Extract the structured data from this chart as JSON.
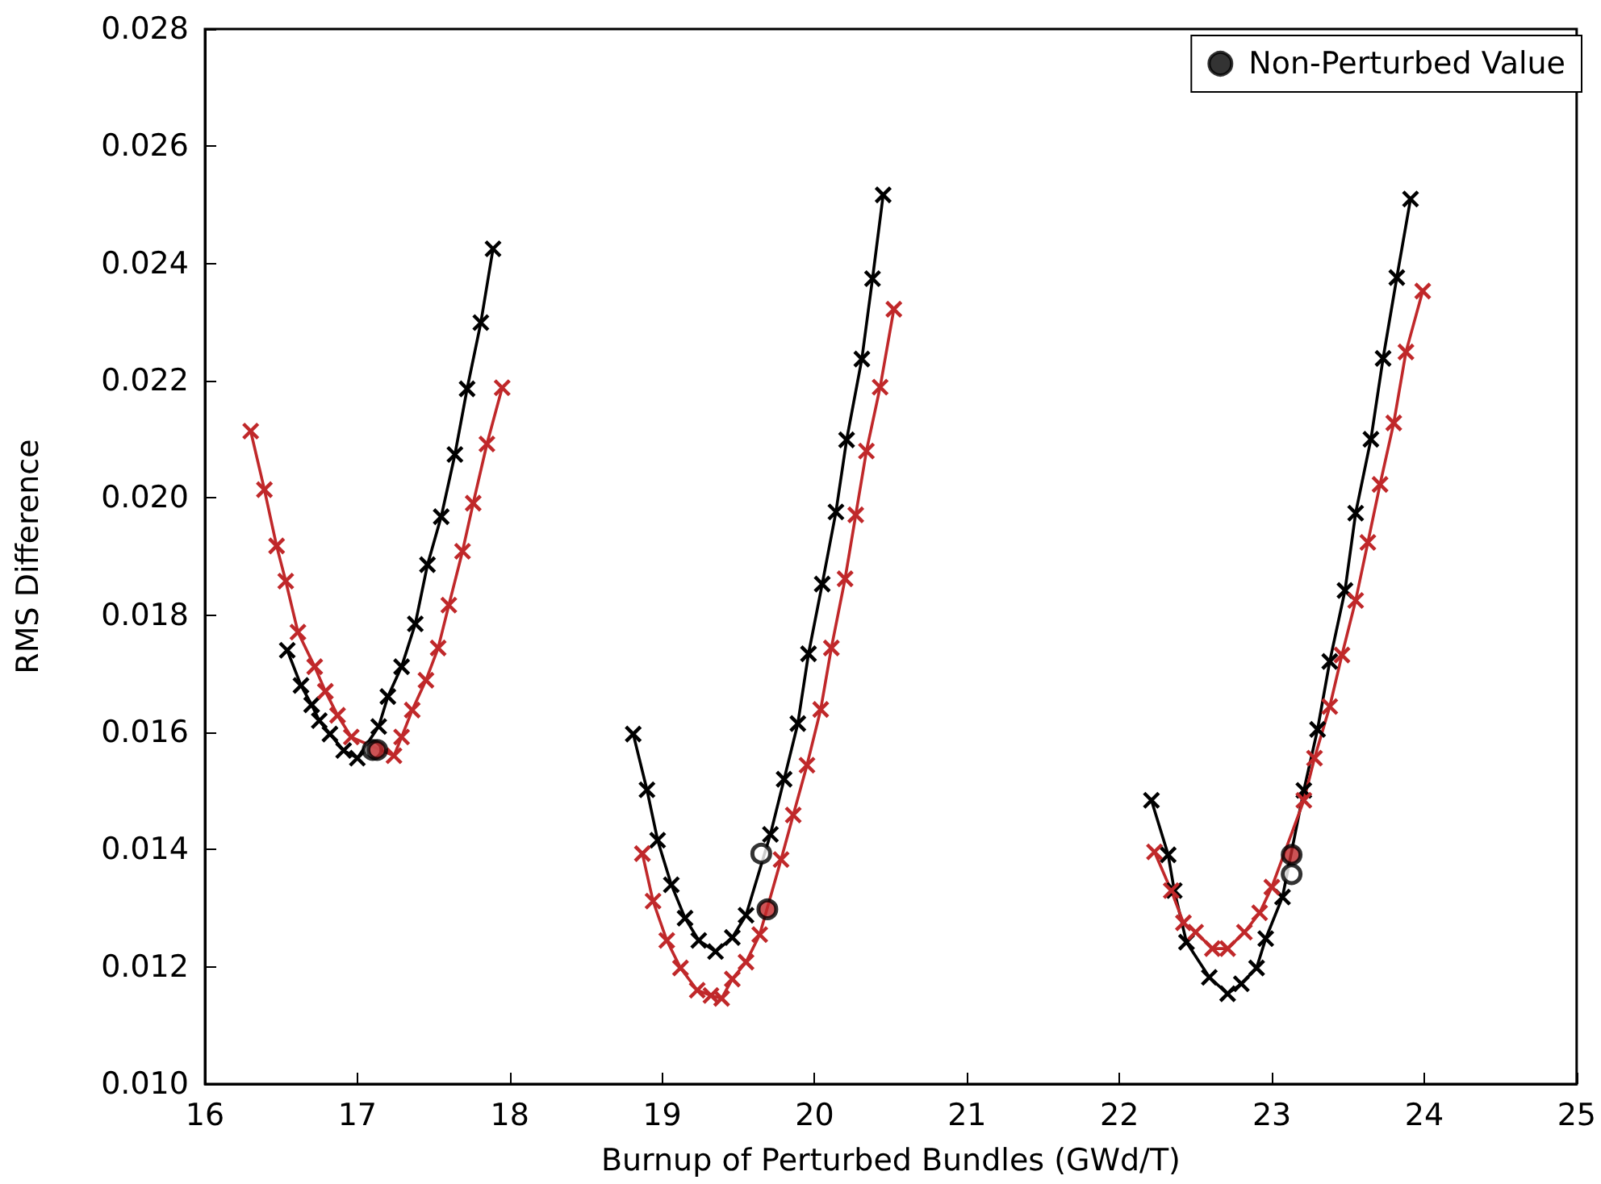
{
  "chart_data": {
    "type": "line",
    "xlabel": "Burnup of Perturbed Bundles (GWd/T)",
    "ylabel": "RMS Difference",
    "xlim": [
      16,
      25
    ],
    "xticks": [
      16,
      17,
      18,
      19,
      20,
      21,
      22,
      23,
      24,
      25
    ],
    "ylim": [
      0.01,
      0.028
    ],
    "yticks": [
      {
        "value": 0.01,
        "label": "0.010"
      },
      {
        "value": 0.012,
        "label": "0.012"
      },
      {
        "value": 0.014,
        "label": "0.014"
      },
      {
        "value": 0.016,
        "label": "0.016"
      },
      {
        "value": 0.018,
        "label": "0.018"
      },
      {
        "value": 0.02,
        "label": "0.020"
      },
      {
        "value": 0.022,
        "label": "0.022"
      },
      {
        "value": 0.024,
        "label": "0.024"
      },
      {
        "value": 0.026,
        "label": "0.026"
      },
      {
        "value": 0.028,
        "label": "0.028"
      }
    ],
    "grid": false,
    "legend": "top right",
    "marker": "cross",
    "line_style": "solid",
    "series": [
      {
        "color": "#000000",
        "x": [
          16.54,
          16.63,
          16.7,
          16.75,
          16.82,
          16.91,
          17.0,
          17.14,
          17.2,
          17.29,
          17.38,
          17.46,
          17.55,
          17.64,
          17.72,
          17.81,
          17.89
        ],
        "values": [
          0.0174,
          0.0168,
          0.01647,
          0.0162,
          0.01597,
          0.01569,
          0.01556,
          0.0161,
          0.01661,
          0.01712,
          0.01785,
          0.01886,
          0.01968,
          0.02074,
          0.02186,
          0.02299,
          0.02425
        ]
      },
      {
        "color": "#c0282a",
        "x": [
          16.3,
          16.39,
          16.47,
          16.53,
          16.61,
          16.72,
          16.79,
          16.87,
          16.96,
          17.24,
          17.29,
          17.36,
          17.45,
          17.53,
          17.6,
          17.69,
          17.76,
          17.85,
          17.95
        ],
        "values": [
          0.02114,
          0.02014,
          0.01918,
          0.01858,
          0.01771,
          0.01712,
          0.0167,
          0.01629,
          0.01592,
          0.0156,
          0.01592,
          0.01638,
          0.01689,
          0.01744,
          0.01817,
          0.01909,
          0.01991,
          0.02092,
          0.02188
        ]
      },
      {
        "color": "#000000",
        "x": [
          18.81,
          18.9,
          18.97,
          19.06,
          19.15,
          19.24,
          19.35,
          19.46,
          19.55,
          19.71,
          19.8,
          19.89,
          19.96,
          20.05,
          20.14,
          20.21,
          20.31,
          20.38,
          20.45
        ],
        "values": [
          0.01597,
          0.01502,
          0.01416,
          0.0134,
          0.01283,
          0.01245,
          0.01226,
          0.0125,
          0.01288,
          0.01426,
          0.0152,
          0.01615,
          0.01734,
          0.01853,
          0.01976,
          0.02099,
          0.02237,
          0.02374,
          0.02517
        ]
      },
      {
        "color": "#c0282a",
        "x": [
          18.87,
          18.94,
          19.03,
          19.12,
          19.23,
          19.32,
          19.39,
          19.46,
          19.55,
          19.64,
          19.78,
          19.86,
          19.95,
          20.04,
          20.11,
          20.2,
          20.27,
          20.34,
          20.43,
          20.52
        ],
        "values": [
          0.01393,
          0.01312,
          0.01245,
          0.01198,
          0.0116,
          0.01151,
          0.01146,
          0.01179,
          0.01208,
          0.01255,
          0.01383,
          0.01459,
          0.01544,
          0.01639,
          0.01744,
          0.01862,
          0.01971,
          0.0208,
          0.02189,
          0.02322
        ]
      },
      {
        "color": "#000000",
        "x": [
          22.21,
          22.32,
          22.36,
          22.44,
          22.59,
          22.71,
          22.8,
          22.9,
          22.96,
          23.07,
          23.21,
          23.3,
          23.38,
          23.48,
          23.55,
          23.65,
          23.73,
          23.82,
          23.91
        ],
        "values": [
          0.01484,
          0.01391,
          0.0133,
          0.01242,
          0.01182,
          0.01154,
          0.01171,
          0.01198,
          0.01248,
          0.01319,
          0.01501,
          0.01605,
          0.01721,
          0.01842,
          0.01974,
          0.021,
          0.02238,
          0.02376,
          0.0251
        ]
      },
      {
        "color": "#c0282a",
        "x": [
          22.23,
          22.34,
          22.42,
          22.5,
          22.61,
          22.71,
          22.82,
          22.92,
          23.0,
          23.21,
          23.28,
          23.38,
          23.46,
          23.55,
          23.63,
          23.71,
          23.8,
          23.88,
          23.99
        ],
        "values": [
          0.01396,
          0.0133,
          0.01275,
          0.01259,
          0.01231,
          0.01231,
          0.01259,
          0.01292,
          0.01336,
          0.01484,
          0.01556,
          0.01644,
          0.01732,
          0.01825,
          0.01924,
          0.02023,
          0.02128,
          0.02249,
          0.02353
        ]
      },
      {
        "type": "scatter",
        "name": "Non-Perturbed Value",
        "marker": "circle",
        "color": "#000000",
        "x": [
          17.1,
          17.13,
          19.65,
          19.69,
          23.13,
          23.13
        ],
        "values": [
          0.0157,
          0.0157,
          0.01393,
          0.01298,
          0.01358,
          0.01391
        ],
        "colors": [
          "#ffffff",
          "#c0282a",
          "#ffffff",
          "#c0282a",
          "#ffffff",
          "#c0282a"
        ]
      }
    ]
  }
}
